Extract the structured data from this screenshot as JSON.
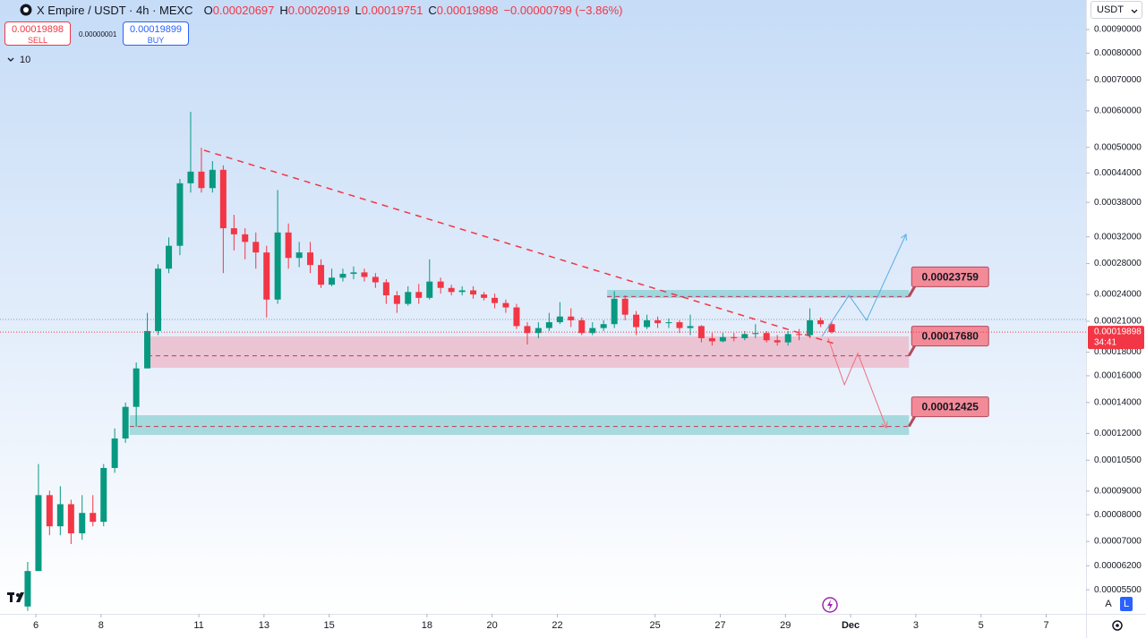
{
  "chart_data": {
    "type": "candlestick",
    "title": "X Empire / USDT · 4h · MEXC",
    "x": [
      5.75,
      6.08,
      6.42,
      6.75,
      7.08,
      7.42,
      7.75,
      8.08,
      8.42,
      8.75,
      9.08,
      9.42,
      9.75,
      10.08,
      10.42,
      10.75,
      11.08,
      11.42,
      11.75,
      12.08,
      12.42,
      12.75,
      13.08,
      13.42,
      13.75,
      14.08,
      14.42,
      14.75,
      15.08,
      15.42,
      15.75,
      16.08,
      16.42,
      16.75,
      17.08,
      17.42,
      17.75,
      18.08,
      18.42,
      18.75,
      19.08,
      19.42,
      19.75,
      20.08,
      20.42,
      20.75,
      21.08,
      21.42,
      21.75,
      22.08,
      22.42,
      22.75,
      23.08,
      23.42,
      23.75,
      24.08,
      24.42,
      24.75,
      25.08,
      25.42,
      25.75,
      26.08,
      26.42,
      26.75,
      27.08,
      27.42,
      27.75,
      28.08,
      28.42,
      28.75,
      29.08,
      29.42,
      29.75,
      30.08,
      30.42
    ],
    "open": [
      5.06e-05,
      6.04e-05,
      8.82e-05,
      7.55e-05,
      8.43e-05,
      7.29e-05,
      8.07e-05,
      7.72e-05,
      0.000101,
      0.000117,
      0.000137,
      0.000166,
      0.0002,
      0.000273,
      0.000306,
      0.000418,
      0.000443,
      0.000408,
      0.000447,
      0.000334,
      0.000324,
      0.000312,
      0.000296,
      0.000234,
      0.000327,
      0.000288,
      0.000296,
      0.000278,
      0.000252,
      0.000261,
      0.000266,
      0.000268,
      0.000262,
      0.000255,
      0.000239,
      0.000229,
      0.000243,
      0.000236,
      0.000256,
      0.000248,
      0.000243,
      0.000245,
      0.00024,
      0.000236,
      0.00023,
      0.000225,
      0.000205,
      0.000198,
      0.000203,
      0.000209,
      0.000215,
      0.000211,
      0.000198,
      0.000203,
      0.000207,
      0.000235,
      0.000217,
      0.000204,
      0.000211,
      0.000208,
      0.000209,
      0.000203,
      0.000205,
      0.000193,
      0.00019,
      0.000194,
      0.000193,
      0.000197,
      0.000198,
      0.000191,
      0.000189,
      0.000197,
      0.000196,
      0.000211,
      0.00020697
    ],
    "high": [
      6.32e-05,
      0.000103,
      9.02e-05,
      9.22e-05,
      8.62e-05,
      8.82e-05,
      8.82e-05,
      0.000103,
      0.000123,
      0.00014,
      0.000171,
      0.000219,
      0.000279,
      0.000319,
      0.000427,
      0.000597,
      0.000499,
      0.000467,
      0.000457,
      0.000357,
      0.000334,
      0.000327,
      0.000306,
      0.000404,
      0.000342,
      0.000312,
      0.000312,
      0.000286,
      0.000273,
      0.000273,
      0.000276,
      0.000273,
      0.000267,
      0.000259,
      0.000244,
      0.00025,
      0.000253,
      0.000286,
      0.000261,
      0.000252,
      0.00025,
      0.00025,
      0.000243,
      0.000241,
      0.000234,
      0.000229,
      0.000209,
      0.000209,
      0.000219,
      0.000231,
      0.000224,
      0.000214,
      0.000209,
      0.000211,
      0.000244,
      0.000239,
      0.000221,
      0.000217,
      0.000215,
      0.000213,
      0.000211,
      0.000217,
      0.000206,
      0.000198,
      0.000198,
      0.000198,
      0.0002,
      0.000207,
      0.0002,
      0.000196,
      0.0002,
      0.000202,
      0.000224,
      0.000214,
      0.00020919
    ],
    "low": [
      4.95e-05,
      6.04e-05,
      7.22e-05,
      7.22e-05,
      6.91e-05,
      7.06e-05,
      7.55e-05,
      7.55e-05,
      9.86e-05,
      0.0001145,
      0.000124,
      0.000166,
      0.000196,
      0.000267,
      0.000292,
      0.000399,
      0.000399,
      0.000399,
      0.000267,
      0.000299,
      0.000286,
      0.000273,
      0.000214,
      0.000229,
      0.000273,
      0.000275,
      0.000267,
      0.000248,
      0.00025,
      0.000256,
      0.000259,
      0.000256,
      0.000248,
      0.000229,
      0.000219,
      0.000227,
      0.000229,
      0.000234,
      0.000241,
      0.000239,
      0.000239,
      0.000235,
      0.000233,
      0.000224,
      0.000219,
      0.000202,
      0.000187,
      0.000193,
      0.0002,
      0.000207,
      0.000204,
      0.000196,
      0.000196,
      0.0002,
      0.000203,
      0.000211,
      0.000196,
      0.000202,
      0.000203,
      0.000203,
      0.000198,
      0.000196,
      0.000189,
      0.000186,
      0.000189,
      0.00019,
      0.000191,
      0.000193,
      0.000189,
      0.000186,
      0.000186,
      0.000191,
      0.000193,
      0.000204,
      0.00019751
    ],
    "close": [
      6.04e-05,
      8.82e-05,
      7.55e-05,
      8.43e-05,
      7.29e-05,
      8.07e-05,
      7.72e-05,
      0.000101,
      0.000117,
      0.000137,
      0.000166,
      0.0002,
      0.000273,
      0.000306,
      0.000418,
      0.000443,
      0.000408,
      0.000447,
      0.000334,
      0.000324,
      0.000312,
      0.000296,
      0.000234,
      0.000327,
      0.000288,
      0.000296,
      0.000278,
      0.000252,
      0.000261,
      0.000266,
      0.000268,
      0.000262,
      0.000255,
      0.000239,
      0.000229,
      0.000243,
      0.000236,
      0.000256,
      0.000248,
      0.000243,
      0.000245,
      0.00024,
      0.000236,
      0.00023,
      0.000225,
      0.000205,
      0.000198,
      0.000203,
      0.000209,
      0.000215,
      0.000211,
      0.000198,
      0.000203,
      0.000207,
      0.000235,
      0.000217,
      0.000204,
      0.000211,
      0.000208,
      0.000209,
      0.000203,
      0.000205,
      0.000193,
      0.00019,
      0.000194,
      0.000193,
      0.000197,
      0.000198,
      0.000191,
      0.000189,
      0.000197,
      0.000196,
      0.000211,
      0.000207,
      0.00019898
    ],
    "up_color": "#089981",
    "down_color": "#f23645",
    "xlim": [
      4.9,
      38.14
    ],
    "xticks": [
      6,
      8,
      11,
      13,
      15,
      18,
      20,
      22,
      25,
      27,
      29,
      {
        "value": 31,
        "label": "Dec"
      },
      {
        "value": 33,
        "label": "3"
      },
      {
        "value": 35,
        "label": "5"
      },
      {
        "value": 37,
        "label": "7"
      }
    ],
    "ylim": [
      4.9e-05,
      0.001043
    ],
    "log_scale": true,
    "grid": false,
    "yticks": [
      {
        "value": 0.0009,
        "label": "0.00090000"
      },
      {
        "value": 0.0008,
        "label": "0.00080000"
      },
      {
        "value": 0.0007,
        "label": "0.00070000"
      },
      {
        "value": 0.0006,
        "label": "0.00060000"
      },
      {
        "value": 0.0005,
        "label": "0.00050000"
      },
      {
        "value": 0.00044,
        "label": "0.00044000"
      },
      {
        "value": 0.00038,
        "label": "0.00038000"
      },
      {
        "value": 0.00032,
        "label": "0.00032000"
      },
      {
        "value": 0.00028,
        "label": "0.00028000"
      },
      {
        "value": 0.00024,
        "label": "0.00024000"
      },
      {
        "value": 0.00021,
        "label": "0.00021000"
      },
      {
        "value": 0.00018,
        "label": "0.00018000"
      },
      {
        "value": 0.00016,
        "label": "0.00016000"
      },
      {
        "value": 0.00014,
        "label": "0.00014000"
      },
      {
        "value": 0.00012,
        "label": "0.00012000"
      },
      {
        "value": 0.000105,
        "label": "0.00010500"
      },
      {
        "value": 9e-05,
        "label": "0.00009000"
      },
      {
        "value": 8e-05,
        "label": "0.00008000"
      },
      {
        "value": 7e-05,
        "label": "0.00007000"
      },
      {
        "value": 6.2e-05,
        "label": "0.00006200"
      },
      {
        "value": 5.5e-05,
        "label": "0.00005500"
      }
    ],
    "zones": [
      {
        "level": {
          "value": 0.00023759,
          "label": "0.00023759"
        },
        "top": 0.0002455,
        "bottom": 0.0002359,
        "x": [
          23.53,
          32.79
        ],
        "color": "#5fbfbf"
      },
      {
        "level": {
          "value": 0.0001768,
          "label": "0.00017680"
        },
        "top": 0.0001947,
        "bottom": 0.0001665,
        "x": [
          9.43,
          32.79
        ],
        "color": "#f19aac"
      },
      {
        "level": {
          "value": 0.00012425,
          "label": "0.00012425"
        },
        "top": 0.0001314,
        "bottom": 0.0001191,
        "x": [
          8.88,
          32.79
        ],
        "color": "#5fbfbf"
      }
    ],
    "trendline": {
      "x": [
        11.16,
        30.59
      ],
      "y": [
        0.000493,
        0.000187
      ],
      "color": "#f23645"
    },
    "projections": [
      {
        "x": [
          30.12,
          30.95,
          31.49,
          32.7
        ],
        "y": [
          0.0001947,
          0.000239,
          0.000211,
          0.000324
        ],
        "color": "#5aaee6"
      },
      {
        "x": [
          30.31,
          30.81,
          31.22,
          32.1
        ],
        "y": [
          0.000193,
          0.000153,
          0.000179,
          0.0001234
        ],
        "color": "#f07080"
      }
    ]
  },
  "ui": {
    "ohlc_letters": [
      "O",
      "H",
      "L",
      "C"
    ],
    "change": "−0.00000799 (−3.86%)",
    "sell_label": "SELL",
    "buy_price": "0.00019899",
    "buy_label": "BUY",
    "spread": "0.00000001",
    "indicators": "10",
    "currency": "USDT",
    "countdown": "34:41",
    "scale_buttons": [
      "A",
      "L"
    ]
  }
}
